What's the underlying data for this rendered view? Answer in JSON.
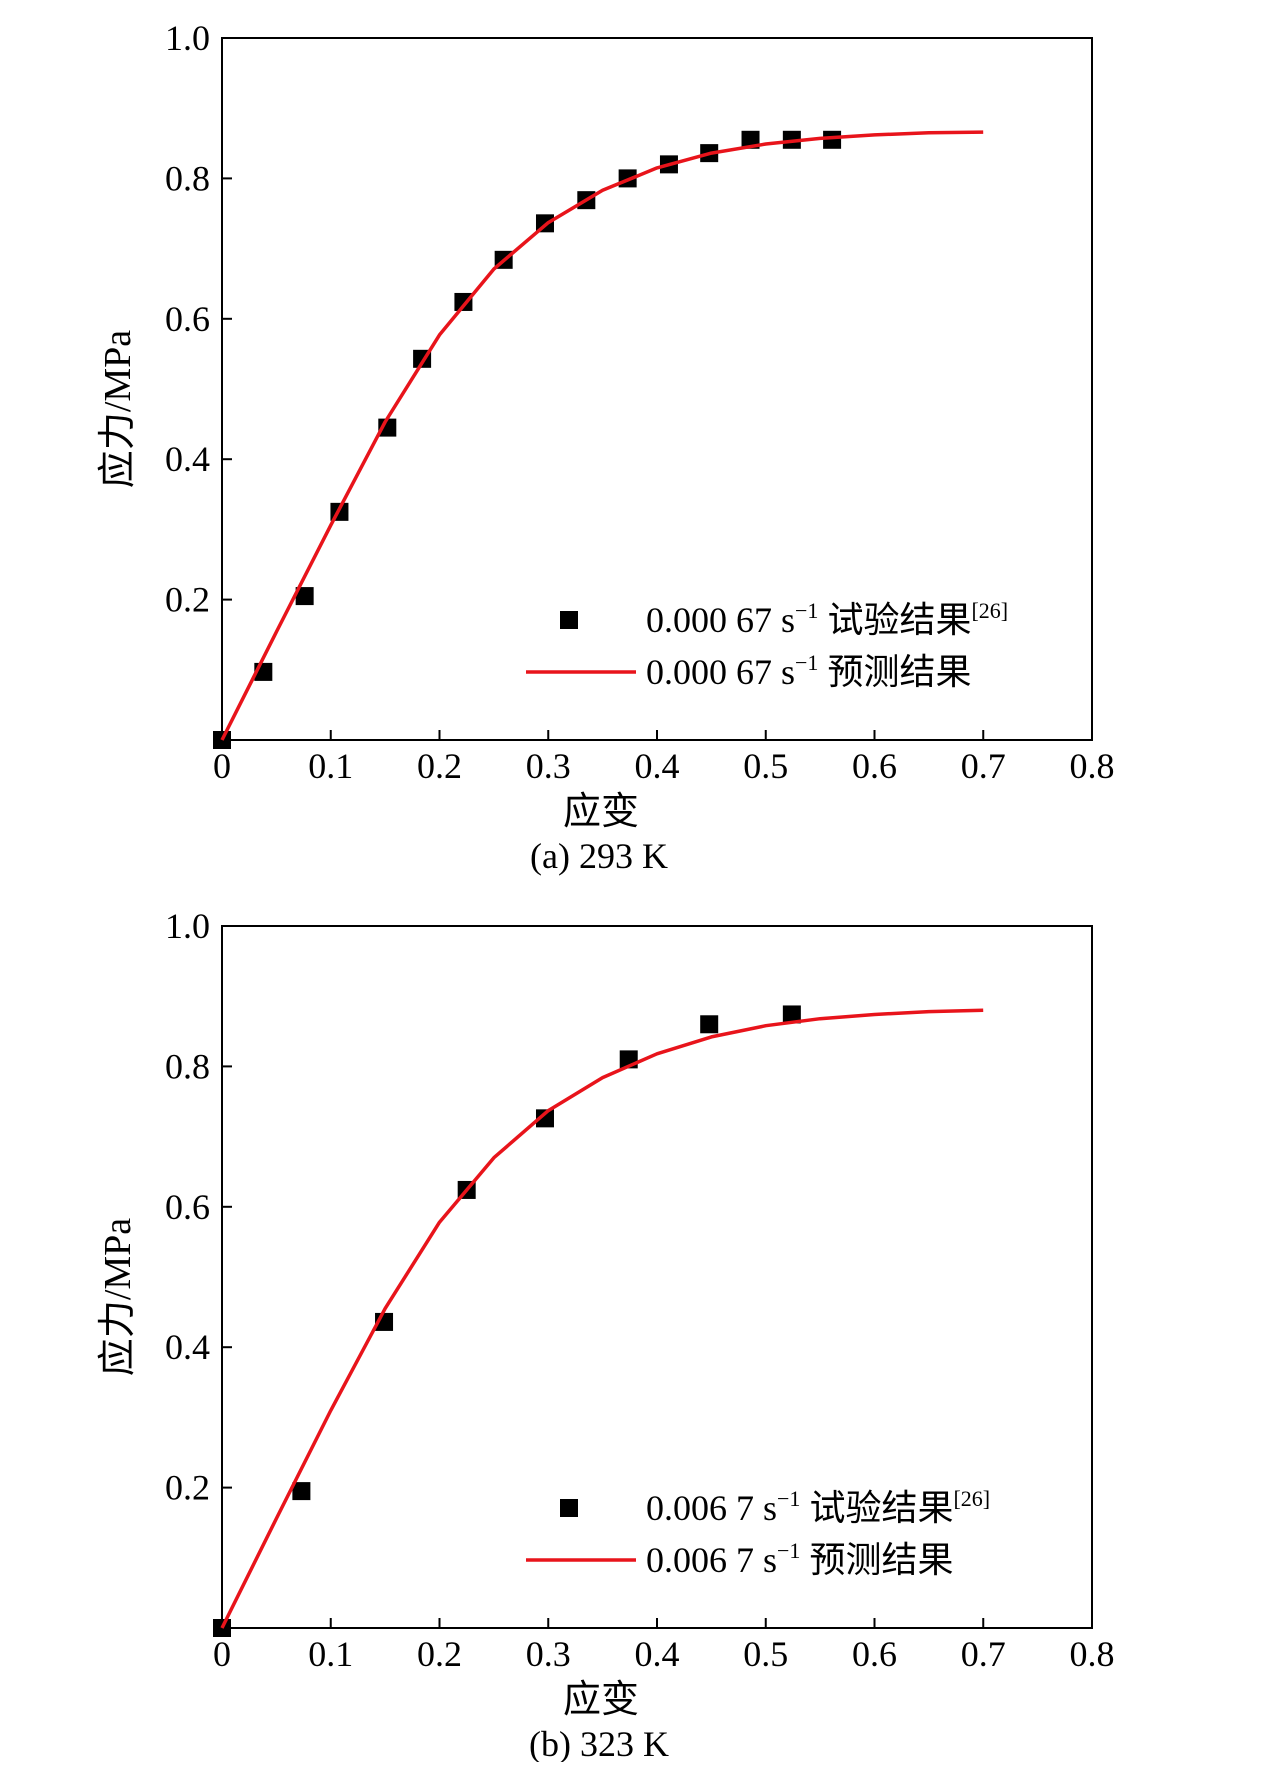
{
  "chart_data": [
    {
      "type": "scatter",
      "caption": "(a) 293 K",
      "xlabel": "应变",
      "ylabel": "应力/MPa",
      "xlim": [
        0,
        0.8
      ],
      "ylim": [
        0,
        1.0
      ],
      "xticks": [
        "0",
        "0.1",
        "0.2",
        "0.3",
        "0.4",
        "0.5",
        "0.6",
        "0.7",
        "0.8"
      ],
      "yticks": [
        "0.2",
        "0.4",
        "0.6",
        "0.8",
        "1.0"
      ],
      "grid": false,
      "legend_position": "bottom-right",
      "series": [
        {
          "name": "0.000 67 s⁻¹ 试验结果[26]",
          "name_main": "0.000 67 s",
          "name_exp": "−1",
          "name_tail": " 试验结果",
          "name_ref": "[26]",
          "kind": "scatter",
          "marker": "square",
          "color": "#000000",
          "x": [
            0.0,
            0.038,
            0.076,
            0.108,
            0.152,
            0.184,
            0.222,
            0.259,
            0.297,
            0.335,
            0.373,
            0.411,
            0.448,
            0.486,
            0.524,
            0.561
          ],
          "y": [
            0.0,
            0.097,
            0.205,
            0.325,
            0.445,
            0.543,
            0.624,
            0.684,
            0.736,
            0.769,
            0.8,
            0.82,
            0.836,
            0.855,
            0.855,
            0.855
          ]
        },
        {
          "name": "0.000 67 s⁻¹ 预测结果",
          "name_main": "0.000 67 s",
          "name_exp": "−1",
          "name_tail": " 预测结果",
          "kind": "line",
          "color": "#e8141b",
          "x": [
            0.0,
            0.05,
            0.1,
            0.15,
            0.2,
            0.25,
            0.3,
            0.35,
            0.4,
            0.45,
            0.5,
            0.55,
            0.6,
            0.65,
            0.7
          ],
          "y": [
            0.0,
            0.154,
            0.306,
            0.453,
            0.577,
            0.671,
            0.737,
            0.783,
            0.815,
            0.836,
            0.849,
            0.857,
            0.862,
            0.865,
            0.866
          ]
        }
      ]
    },
    {
      "type": "scatter",
      "caption": "(b) 323 K",
      "xlabel": "应变",
      "ylabel": "应力/MPa",
      "xlim": [
        0,
        0.8
      ],
      "ylim": [
        0,
        1.0
      ],
      "xticks": [
        "0",
        "0.1",
        "0.2",
        "0.3",
        "0.4",
        "0.5",
        "0.6",
        "0.7",
        "0.8"
      ],
      "yticks": [
        "0.2",
        "0.4",
        "0.6",
        "0.8",
        "1.0"
      ],
      "grid": false,
      "legend_position": "bottom-right",
      "series": [
        {
          "name": "0.006 7 s⁻¹ 试验结果[26]",
          "name_main": "0.006 7 s",
          "name_exp": "−1",
          "name_tail": " 试验结果",
          "name_ref": "[26]",
          "kind": "scatter",
          "marker": "square",
          "color": "#000000",
          "x": [
            0.0,
            0.073,
            0.149,
            0.225,
            0.297,
            0.374,
            0.448,
            0.524
          ],
          "y": [
            0.0,
            0.195,
            0.436,
            0.624,
            0.726,
            0.81,
            0.86,
            0.874
          ]
        },
        {
          "name": "0.006 7 s⁻¹ 预测结果",
          "name_main": "0.006 7 s",
          "name_exp": "−1",
          "name_tail": " 预测结果",
          "kind": "line",
          "color": "#e8141b",
          "x": [
            0.0,
            0.05,
            0.1,
            0.15,
            0.2,
            0.25,
            0.3,
            0.35,
            0.4,
            0.45,
            0.5,
            0.55,
            0.6,
            0.65,
            0.7
          ],
          "y": [
            0.0,
            0.156,
            0.31,
            0.455,
            0.578,
            0.67,
            0.737,
            0.784,
            0.818,
            0.842,
            0.858,
            0.868,
            0.874,
            0.878,
            0.88
          ]
        }
      ]
    }
  ]
}
